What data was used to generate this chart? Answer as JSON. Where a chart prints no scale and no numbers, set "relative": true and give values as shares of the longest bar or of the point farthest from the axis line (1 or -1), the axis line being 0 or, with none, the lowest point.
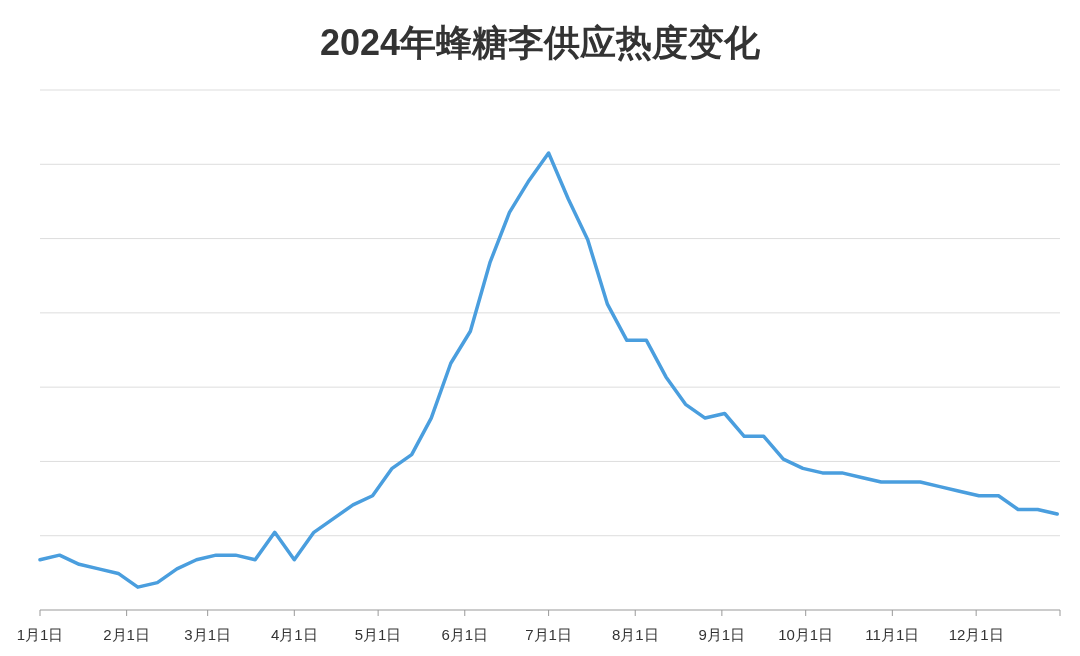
{
  "chart_data": {
    "type": "line",
    "title": "2024年蜂糖李供应热度变化",
    "relative": true,
    "grid": "y",
    "marker": "none",
    "line_style": "solid",
    "x": [
      "2024-01-01",
      "2024-01-08",
      "2024-01-15",
      "2024-01-22",
      "2024-01-29",
      "2024-02-05",
      "2024-02-12",
      "2024-02-19",
      "2024-02-26",
      "2024-03-04",
      "2024-03-11",
      "2024-03-18",
      "2024-03-25",
      "2024-04-01",
      "2024-04-08",
      "2024-04-15",
      "2024-04-22",
      "2024-04-29",
      "2024-05-06",
      "2024-05-13",
      "2024-05-20",
      "2024-05-27",
      "2024-06-03",
      "2024-06-10",
      "2024-06-17",
      "2024-06-24",
      "2024-07-01",
      "2024-07-08",
      "2024-07-15",
      "2024-07-22",
      "2024-07-29",
      "2024-08-05",
      "2024-08-12",
      "2024-08-19",
      "2024-08-26",
      "2024-09-02",
      "2024-09-09",
      "2024-09-16",
      "2024-09-23",
      "2024-09-30",
      "2024-10-07",
      "2024-10-14",
      "2024-10-21",
      "2024-10-28",
      "2024-11-04",
      "2024-11-11",
      "2024-11-18",
      "2024-11-25",
      "2024-12-02",
      "2024-12-09",
      "2024-12-16",
      "2024-12-23",
      "2024-12-30"
    ],
    "series": [
      {
        "color": "#4a9ede",
        "values": [
          0.11,
          0.12,
          0.1,
          0.09,
          0.08,
          0.05,
          0.06,
          0.09,
          0.11,
          0.12,
          0.12,
          0.11,
          0.17,
          0.11,
          0.17,
          0.2,
          0.23,
          0.25,
          0.31,
          0.34,
          0.42,
          0.54,
          0.61,
          0.76,
          0.87,
          0.94,
          1,
          0.9,
          0.81,
          0.67,
          0.59,
          0.59,
          0.51,
          0.45,
          0.42,
          0.43,
          0.38,
          0.38,
          0.33,
          0.31,
          0.3,
          0.3,
          0.29,
          0.28,
          0.28,
          0.28,
          0.27,
          0.26,
          0.25,
          0.25,
          0.22,
          0.22,
          0.21
        ]
      }
    ],
    "xlim": [
      "2024-01-01",
      "2024-12-31"
    ],
    "xticks": [
      {
        "value": "2024-01-01",
        "label": "1月1日"
      },
      {
        "value": "2024-02-01",
        "label": "2月1日"
      },
      {
        "value": "2024-03-01",
        "label": "3月1日"
      },
      {
        "value": "2024-04-01",
        "label": "4月1日"
      },
      {
        "value": "2024-05-01",
        "label": "5月1日"
      },
      {
        "value": "2024-06-01",
        "label": "6月1日"
      },
      {
        "value": "2024-07-01",
        "label": "7月1日"
      },
      {
        "value": "2024-08-01",
        "label": "8月1日"
      },
      {
        "value": "2024-09-01",
        "label": "9月1日"
      },
      {
        "value": "2024-10-01",
        "label": "10月1日"
      },
      {
        "value": "2024-11-01",
        "label": "11月1日"
      },
      {
        "value": "2024-12-01",
        "label": "12月1日"
      }
    ]
  }
}
